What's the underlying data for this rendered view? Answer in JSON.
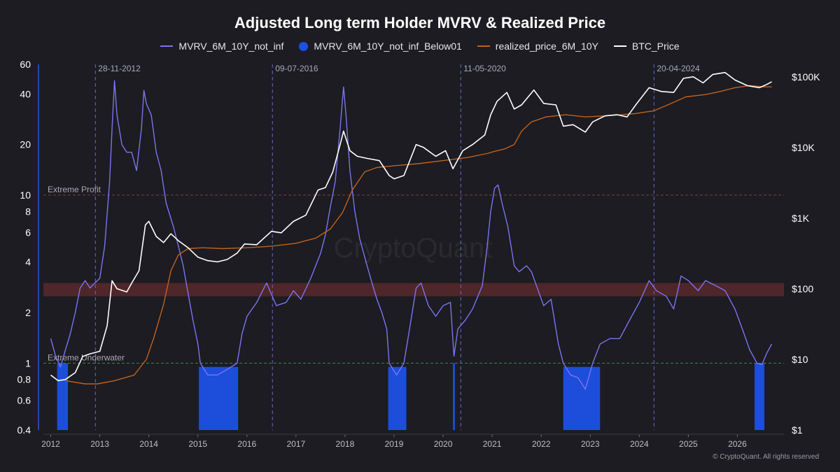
{
  "chart_data": {
    "type": "line",
    "title": "Adjusted Long term Holder MVRV & Realized Price",
    "legend": [
      {
        "name": "MVRV_6M_10Y_not_inf",
        "color": "#7b74f0",
        "marker": "line"
      },
      {
        "name": "MVRV_6M_10Y_not_inf_Below01",
        "color": "#1e50e6",
        "marker": "dot"
      },
      {
        "name": "realized_price_6M_10Y",
        "color": "#c0621e",
        "marker": "line"
      },
      {
        "name": "BTC_Price",
        "color": "#ffffff",
        "marker": "line"
      }
    ],
    "legend_position": "top-center",
    "x_axis": {
      "ticks": [
        "2012",
        "2013",
        "2014",
        "2015",
        "2016",
        "2017",
        "2018",
        "2019",
        "2020",
        "2021",
        "2022",
        "2023",
        "2024",
        "2025",
        "2026"
      ],
      "range": [
        2011.85,
        2026.95
      ]
    },
    "y_left": {
      "scale": "log",
      "ticks": [
        "60",
        "40",
        "20",
        "10",
        "8",
        "6",
        "4",
        "2",
        "1",
        "0.8",
        "0.6",
        "0.4"
      ],
      "tick_values": [
        60,
        40,
        20,
        10,
        8,
        6,
        4,
        2,
        1,
        0.8,
        0.6,
        0.4
      ],
      "range": [
        0.4,
        60
      ]
    },
    "y_right": {
      "scale": "log",
      "ticks": [
        "$100K",
        "$10K",
        "$1K",
        "$100",
        "$10",
        "$1"
      ],
      "tick_values": [
        100000,
        10000,
        1000,
        100,
        10,
        1
      ],
      "range": [
        1,
        150000
      ]
    },
    "reference_lines": [
      {
        "label": "Extreme Profit",
        "value": 10,
        "color": "#8a3a3a"
      },
      {
        "label": "Extreme Underwater",
        "value": 1,
        "color": "#3e8a3e"
      }
    ],
    "band": {
      "from": 2.5,
      "to": 3.0,
      "color": "#7a3030"
    },
    "cycle_markers": [
      {
        "label": "28-11-2012",
        "x": 2012.91
      },
      {
        "label": "09-07-2016",
        "x": 2016.52
      },
      {
        "label": "11-05-2020",
        "x": 2020.36
      },
      {
        "label": "20-04-2024",
        "x": 2024.3
      }
    ],
    "series": [
      {
        "name": "MVRV_6M_10Y_not_inf",
        "axis": "left",
        "points": [
          [
            2012.0,
            1.4
          ],
          [
            2012.1,
            1.1
          ],
          [
            2012.2,
            0.95
          ],
          [
            2012.3,
            1.2
          ],
          [
            2012.4,
            1.5
          ],
          [
            2012.5,
            2.0
          ],
          [
            2012.6,
            2.8
          ],
          [
            2012.7,
            3.1
          ],
          [
            2012.8,
            2.8
          ],
          [
            2012.9,
            3.0
          ],
          [
            2013.0,
            3.2
          ],
          [
            2013.1,
            5.0
          ],
          [
            2013.2,
            12.0
          ],
          [
            2013.25,
            25.0
          ],
          [
            2013.3,
            48.0
          ],
          [
            2013.35,
            30.0
          ],
          [
            2013.45,
            20.0
          ],
          [
            2013.55,
            18.0
          ],
          [
            2013.65,
            18.0
          ],
          [
            2013.75,
            14.0
          ],
          [
            2013.85,
            25.0
          ],
          [
            2013.9,
            42.0
          ],
          [
            2013.95,
            35.0
          ],
          [
            2014.05,
            30.0
          ],
          [
            2014.15,
            18.0
          ],
          [
            2014.25,
            14.0
          ],
          [
            2014.35,
            9.0
          ],
          [
            2014.5,
            6.5
          ],
          [
            2014.6,
            5.0
          ],
          [
            2014.7,
            3.8
          ],
          [
            2014.8,
            2.6
          ],
          [
            2014.9,
            1.8
          ],
          [
            2015.0,
            1.3
          ],
          [
            2015.05,
            1.0
          ],
          [
            2015.2,
            0.85
          ],
          [
            2015.4,
            0.85
          ],
          [
            2015.6,
            0.92
          ],
          [
            2015.8,
            1.0
          ],
          [
            2015.9,
            1.5
          ],
          [
            2016.0,
            1.9
          ],
          [
            2016.2,
            2.3
          ],
          [
            2016.4,
            3.0
          ],
          [
            2016.6,
            2.2
          ],
          [
            2016.8,
            2.3
          ],
          [
            2016.95,
            2.7
          ],
          [
            2017.1,
            2.4
          ],
          [
            2017.3,
            3.2
          ],
          [
            2017.5,
            4.5
          ],
          [
            2017.6,
            5.8
          ],
          [
            2017.7,
            8.5
          ],
          [
            2017.8,
            12.0
          ],
          [
            2017.9,
            25.0
          ],
          [
            2017.97,
            44.0
          ],
          [
            2018.02,
            30.0
          ],
          [
            2018.1,
            14.0
          ],
          [
            2018.2,
            8.0
          ],
          [
            2018.3,
            5.5
          ],
          [
            2018.45,
            3.8
          ],
          [
            2018.55,
            3.0
          ],
          [
            2018.65,
            2.4
          ],
          [
            2018.75,
            2.0
          ],
          [
            2018.85,
            1.6
          ],
          [
            2018.9,
            1.0
          ],
          [
            2019.05,
            0.85
          ],
          [
            2019.2,
            1.0
          ],
          [
            2019.3,
            1.5
          ],
          [
            2019.45,
            2.8
          ],
          [
            2019.55,
            3.0
          ],
          [
            2019.7,
            2.2
          ],
          [
            2019.85,
            1.9
          ],
          [
            2020.0,
            2.2
          ],
          [
            2020.15,
            2.3
          ],
          [
            2020.22,
            1.1
          ],
          [
            2020.3,
            1.6
          ],
          [
            2020.45,
            1.8
          ],
          [
            2020.6,
            2.1
          ],
          [
            2020.8,
            2.9
          ],
          [
            2020.9,
            5.0
          ],
          [
            2020.97,
            8.0
          ],
          [
            2021.05,
            11.0
          ],
          [
            2021.12,
            11.5
          ],
          [
            2021.2,
            9.0
          ],
          [
            2021.32,
            6.5
          ],
          [
            2021.45,
            3.8
          ],
          [
            2021.55,
            3.5
          ],
          [
            2021.7,
            3.8
          ],
          [
            2021.8,
            3.5
          ],
          [
            2021.9,
            2.9
          ],
          [
            2022.05,
            2.2
          ],
          [
            2022.2,
            2.4
          ],
          [
            2022.35,
            1.3
          ],
          [
            2022.45,
            1.0
          ],
          [
            2022.6,
            0.85
          ],
          [
            2022.75,
            0.82
          ],
          [
            2022.9,
            0.7
          ],
          [
            2023.05,
            1.0
          ],
          [
            2023.2,
            1.3
          ],
          [
            2023.4,
            1.4
          ],
          [
            2023.6,
            1.4
          ],
          [
            2023.8,
            1.8
          ],
          [
            2024.0,
            2.3
          ],
          [
            2024.2,
            3.1
          ],
          [
            2024.35,
            2.7
          ],
          [
            2024.55,
            2.5
          ],
          [
            2024.7,
            2.1
          ],
          [
            2024.85,
            3.3
          ],
          [
            2025.0,
            3.1
          ],
          [
            2025.2,
            2.7
          ],
          [
            2025.35,
            3.1
          ],
          [
            2025.55,
            2.9
          ],
          [
            2025.75,
            2.7
          ],
          [
            2025.95,
            2.1
          ],
          [
            2026.1,
            1.6
          ],
          [
            2026.25,
            1.2
          ],
          [
            2026.4,
            1.0
          ],
          [
            2026.5,
            0.98
          ],
          [
            2026.6,
            1.15
          ],
          [
            2026.7,
            1.3
          ]
        ]
      },
      {
        "name": "MVRV_6M_10Y_not_inf_Below01",
        "axis": "left",
        "type": "bar",
        "bars": [
          {
            "from": 2012.13,
            "to": 2012.35,
            "top": 1.0
          },
          {
            "from": 2015.02,
            "to": 2015.82,
            "top": 0.95
          },
          {
            "from": 2018.88,
            "to": 2019.25,
            "top": 0.95
          },
          {
            "from": 2020.2,
            "to": 2020.24,
            "top": 1.0
          },
          {
            "from": 2022.45,
            "to": 2023.2,
            "top": 0.95
          },
          {
            "from": 2026.35,
            "to": 2026.55,
            "top": 1.0
          }
        ]
      },
      {
        "name": "realized_price_6M_10Y",
        "axis": "right",
        "points": [
          [
            2012.3,
            5.0
          ],
          [
            2012.7,
            4.5
          ],
          [
            2012.95,
            4.5
          ],
          [
            2013.3,
            5.0
          ],
          [
            2013.7,
            6.0
          ],
          [
            2013.95,
            10.0
          ],
          [
            2014.1,
            20.0
          ],
          [
            2014.3,
            60.0
          ],
          [
            2014.45,
            180.0
          ],
          [
            2014.6,
            300.0
          ],
          [
            2014.8,
            370.0
          ],
          [
            2015.1,
            380.0
          ],
          [
            2015.5,
            370.0
          ],
          [
            2016.0,
            380.0
          ],
          [
            2016.5,
            400.0
          ],
          [
            2017.0,
            440.0
          ],
          [
            2017.4,
            520.0
          ],
          [
            2017.7,
            700.0
          ],
          [
            2017.95,
            1200.0
          ],
          [
            2018.15,
            2500.0
          ],
          [
            2018.4,
            4500.0
          ],
          [
            2018.65,
            5200.0
          ],
          [
            2019.0,
            5500.0
          ],
          [
            2019.5,
            5900.0
          ],
          [
            2020.0,
            6500.0
          ],
          [
            2020.5,
            7200.0
          ],
          [
            2020.9,
            8200.0
          ],
          [
            2021.05,
            8800.0
          ],
          [
            2021.25,
            9500.0
          ],
          [
            2021.45,
            11000.0
          ],
          [
            2021.6,
            17000.0
          ],
          [
            2021.8,
            23000.0
          ],
          [
            2022.1,
            27000.0
          ],
          [
            2022.5,
            29000.0
          ],
          [
            2022.9,
            27000.0
          ],
          [
            2023.3,
            28000.0
          ],
          [
            2023.9,
            30000.0
          ],
          [
            2024.3,
            33000.0
          ],
          [
            2024.65,
            42000.0
          ],
          [
            2024.95,
            52000.0
          ],
          [
            2025.35,
            56000.0
          ],
          [
            2025.65,
            62000.0
          ],
          [
            2025.95,
            70000.0
          ],
          [
            2026.25,
            75000.0
          ],
          [
            2026.55,
            72000.0
          ],
          [
            2026.7,
            72000.0
          ]
        ]
      },
      {
        "name": "BTC_Price",
        "axis": "right",
        "points": [
          [
            2012.0,
            6.0
          ],
          [
            2012.15,
            5.0
          ],
          [
            2012.3,
            5.2
          ],
          [
            2012.5,
            6.5
          ],
          [
            2012.65,
            11.0
          ],
          [
            2012.8,
            12.0
          ],
          [
            2013.0,
            13.0
          ],
          [
            2013.15,
            30.0
          ],
          [
            2013.25,
            130.0
          ],
          [
            2013.35,
            100.0
          ],
          [
            2013.55,
            90.0
          ],
          [
            2013.65,
            120.0
          ],
          [
            2013.8,
            180.0
          ],
          [
            2013.93,
            800.0
          ],
          [
            2014.0,
            900.0
          ],
          [
            2014.15,
            550.0
          ],
          [
            2014.3,
            450.0
          ],
          [
            2014.45,
            600.0
          ],
          [
            2014.6,
            480.0
          ],
          [
            2014.8,
            380.0
          ],
          [
            2015.0,
            280.0
          ],
          [
            2015.2,
            250.0
          ],
          [
            2015.4,
            240.0
          ],
          [
            2015.6,
            260.0
          ],
          [
            2015.8,
            320.0
          ],
          [
            2015.95,
            430.0
          ],
          [
            2016.2,
            420.0
          ],
          [
            2016.5,
            650.0
          ],
          [
            2016.7,
            620.0
          ],
          [
            2016.95,
            900.0
          ],
          [
            2017.2,
            1100.0
          ],
          [
            2017.45,
            2500.0
          ],
          [
            2017.6,
            2700.0
          ],
          [
            2017.75,
            4500.0
          ],
          [
            2017.9,
            11000.0
          ],
          [
            2017.97,
            17000.0
          ],
          [
            2018.1,
            9000.0
          ],
          [
            2018.25,
            7500.0
          ],
          [
            2018.45,
            7000.0
          ],
          [
            2018.7,
            6500.0
          ],
          [
            2018.9,
            4000.0
          ],
          [
            2019.0,
            3600.0
          ],
          [
            2019.2,
            4000.0
          ],
          [
            2019.45,
            11000.0
          ],
          [
            2019.6,
            10000.0
          ],
          [
            2019.85,
            7500.0
          ],
          [
            2020.05,
            9000.0
          ],
          [
            2020.2,
            5000.0
          ],
          [
            2020.4,
            9000.0
          ],
          [
            2020.6,
            11000.0
          ],
          [
            2020.85,
            15000.0
          ],
          [
            2020.97,
            29000.0
          ],
          [
            2021.1,
            45000.0
          ],
          [
            2021.3,
            60000.0
          ],
          [
            2021.45,
            35000.0
          ],
          [
            2021.6,
            40000.0
          ],
          [
            2021.85,
            65000.0
          ],
          [
            2022.05,
            42000.0
          ],
          [
            2022.3,
            40000.0
          ],
          [
            2022.45,
            20000.0
          ],
          [
            2022.65,
            21000.0
          ],
          [
            2022.9,
            16500.0
          ],
          [
            2023.05,
            23000.0
          ],
          [
            2023.3,
            28000.0
          ],
          [
            2023.55,
            29000.0
          ],
          [
            2023.75,
            27000.0
          ],
          [
            2023.95,
            42000.0
          ],
          [
            2024.2,
            70000.0
          ],
          [
            2024.45,
            62000.0
          ],
          [
            2024.7,
            60000.0
          ],
          [
            2024.9,
            95000.0
          ],
          [
            2025.1,
            100000.0
          ],
          [
            2025.3,
            82000.0
          ],
          [
            2025.5,
            108000.0
          ],
          [
            2025.75,
            115000.0
          ],
          [
            2025.95,
            90000.0
          ],
          [
            2026.2,
            75000.0
          ],
          [
            2026.45,
            70000.0
          ],
          [
            2026.6,
            78000.0
          ],
          [
            2026.7,
            85000.0
          ]
        ]
      }
    ],
    "watermark": "CryptoQuant",
    "copyright": "© CryptoQuant. All rights reserved"
  }
}
